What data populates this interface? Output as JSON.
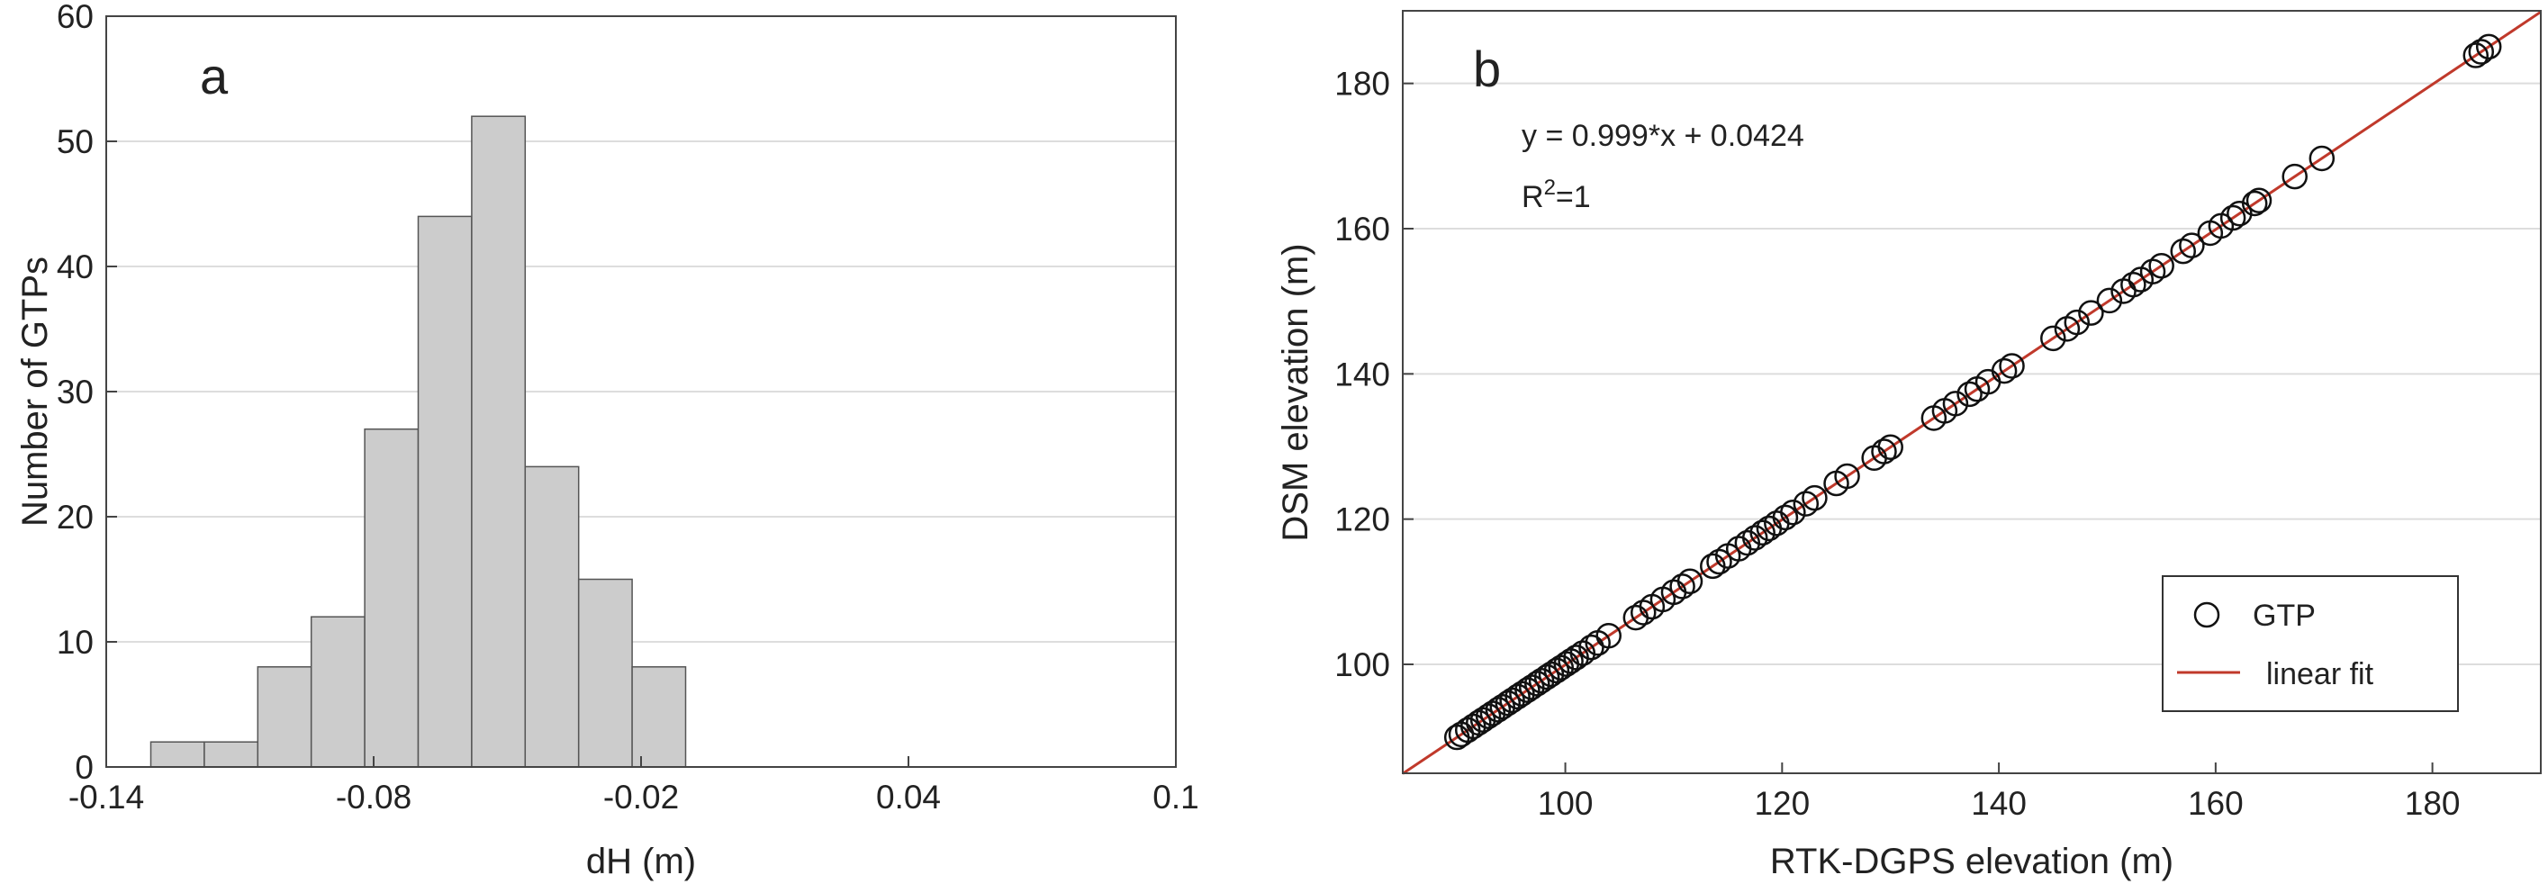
{
  "chart_data": [
    {
      "type": "bar",
      "panel_label": "a",
      "xlabel": "dH (m)",
      "ylabel": "Number of GTPs",
      "xlim": [
        -0.14,
        0.1
      ],
      "ylim": [
        0,
        60
      ],
      "xticks": [
        -0.14,
        -0.08,
        -0.02,
        0.04,
        0.1
      ],
      "xtick_labels": [
        "-0.14",
        "-0.08",
        "-0.02",
        "0.04",
        "0.1"
      ],
      "yticks": [
        0,
        10,
        20,
        30,
        40,
        50,
        60
      ],
      "grid": "horizontal",
      "bin_width": 0.012,
      "bins": [
        {
          "x0": -0.13,
          "x1": -0.118,
          "count": 2
        },
        {
          "x0": -0.118,
          "x1": -0.106,
          "count": 2
        },
        {
          "x0": -0.106,
          "x1": -0.094,
          "count": 8
        },
        {
          "x0": -0.094,
          "x1": -0.082,
          "count": 12
        },
        {
          "x0": -0.082,
          "x1": -0.07,
          "count": 27
        },
        {
          "x0": -0.07,
          "x1": -0.058,
          "count": 44
        },
        {
          "x0": -0.058,
          "x1": -0.046,
          "count": 52
        },
        {
          "x0": -0.046,
          "x1": -0.034,
          "count": 24
        },
        {
          "x0": -0.034,
          "x1": -0.022,
          "count": 15
        },
        {
          "x0": -0.022,
          "x1": -0.01,
          "count": 8
        }
      ],
      "colors": {
        "bar_fill": "#cccccc",
        "bar_edge": "#555555"
      }
    },
    {
      "type": "scatter",
      "panel_label": "b",
      "xlabel": "RTK-DGPS elevation (m)",
      "ylabel": "DSM elevation (m)",
      "xlim": [
        85,
        190
      ],
      "ylim": [
        85,
        190
      ],
      "xticks": [
        100,
        120,
        140,
        160,
        180
      ],
      "yticks": [
        100,
        120,
        140,
        160,
        180
      ],
      "grid": "horizontal",
      "equation": "y = 0.999*x + 0.0424",
      "r2_prefix": "R",
      "r2_sup": "2",
      "r2_suffix": "=1",
      "legend": {
        "position": "bottom-right",
        "entries": [
          "GTP",
          "linear fit"
        ]
      },
      "fit": {
        "slope": 0.999,
        "intercept": 0.0424
      },
      "points": [
        90,
        90.4,
        91,
        91.5,
        92,
        92.4,
        92.9,
        93.3,
        93.8,
        94.2,
        94.7,
        95.1,
        95.6,
        96,
        96.5,
        96.9,
        97.4,
        97.8,
        98.3,
        98.7,
        99.2,
        99.6,
        100.1,
        100.5,
        101,
        101.6,
        102.4,
        103,
        104,
        106.5,
        107.2,
        108,
        109,
        110,
        110.8,
        111.5,
        113.6,
        114.2,
        115,
        116,
        116.8,
        117.5,
        118.2,
        118.8,
        119.5,
        120.3,
        121,
        122.2,
        123,
        125,
        126,
        128.5,
        129.4,
        130,
        134,
        135,
        136,
        137.3,
        138,
        139,
        140.5,
        141.2,
        145,
        146.3,
        147.2,
        148.5,
        150.2,
        151.5,
        152.4,
        153.1,
        154.2,
        155,
        157,
        157.8,
        159.5,
        160.5,
        161.6,
        162.2,
        163.6,
        164,
        167.3,
        169.8,
        184,
        184.5,
        185.2
      ],
      "colors": {
        "marker": "#111111",
        "fit_line": "#c0392b"
      }
    }
  ]
}
